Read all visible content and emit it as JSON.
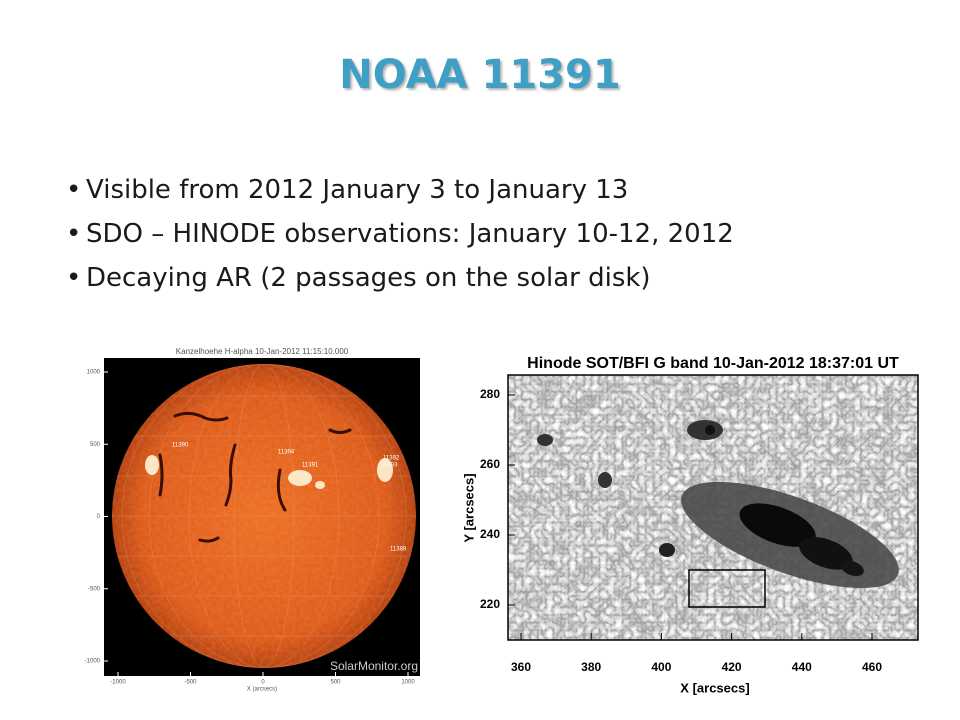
{
  "slide": {
    "title": "NOAA 11391",
    "bullets": [
      "Visible from 2012 January 3 to January 13",
      "SDO – HINODE observations: January 10-12, 2012",
      "Decaying AR (2 passages on the solar disk)"
    ]
  },
  "left_image": {
    "title": "Kanzelhoehe H-alpha 10-Jan-2012 11:15:10.000",
    "x_label": "X (arcsecs)",
    "credit": "SolarMonitor.org",
    "xticks": [
      -1000,
      -500,
      0,
      500,
      1000
    ],
    "yticks": [
      1000,
      500,
      0,
      -500,
      -1000
    ],
    "region_labels": [
      "11390",
      "11394",
      "11391",
      "11392",
      "11393",
      "11389"
    ]
  },
  "right_image": {
    "title": "Hinode SOT/BFI G band 10-Jan-2012 18:37:01 UT",
    "x_label": "X [arcsecs]",
    "y_label": "Y [arcsecs]",
    "xticks": [
      360,
      380,
      400,
      420,
      440,
      460
    ],
    "yticks": [
      280,
      260,
      240,
      220
    ]
  }
}
